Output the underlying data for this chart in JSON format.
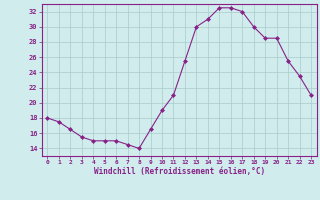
{
  "x": [
    0,
    1,
    2,
    3,
    4,
    5,
    6,
    7,
    8,
    9,
    10,
    11,
    12,
    13,
    14,
    15,
    16,
    17,
    18,
    19,
    20,
    21,
    22,
    23
  ],
  "y": [
    18.0,
    17.5,
    16.5,
    15.5,
    15.0,
    15.0,
    15.0,
    14.5,
    14.0,
    16.5,
    19.0,
    21.0,
    25.5,
    30.0,
    31.0,
    32.5,
    32.5,
    32.0,
    30.0,
    28.5,
    28.5,
    25.5,
    23.5,
    21.0
  ],
  "xlabel": "Windchill (Refroidissement éolien,°C)",
  "ylim": [
    13,
    33
  ],
  "yticks": [
    14,
    16,
    18,
    20,
    22,
    24,
    26,
    28,
    30,
    32
  ],
  "xticks": [
    0,
    1,
    2,
    3,
    4,
    5,
    6,
    7,
    8,
    9,
    10,
    11,
    12,
    13,
    14,
    15,
    16,
    17,
    18,
    19,
    20,
    21,
    22,
    23
  ],
  "line_color": "#882288",
  "marker_color": "#882288",
  "bg_color": "#d0ecec",
  "grid_color": "#aacccc",
  "axis_color": "#882288",
  "tick_color": "#882288",
  "label_color": "#882288"
}
